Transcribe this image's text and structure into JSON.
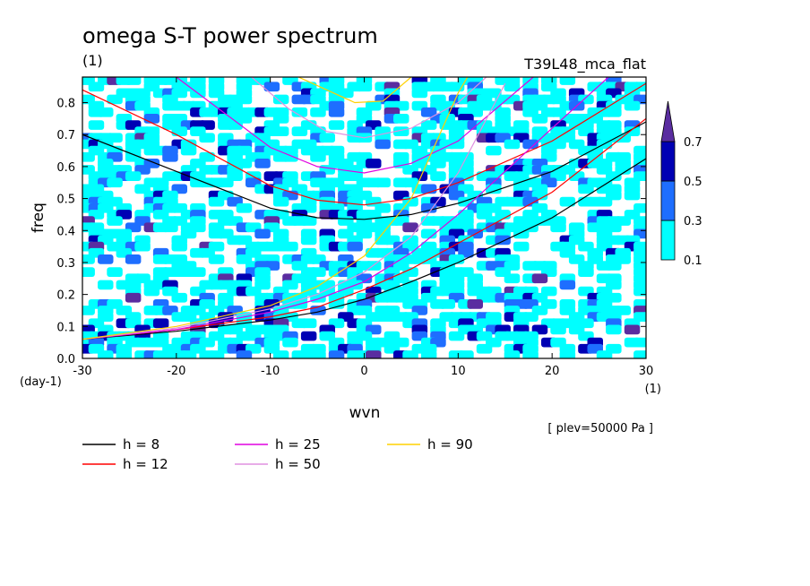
{
  "chart_data": {
    "type": "heatmap",
    "title": "omega S-T power spectrum",
    "subtitle_left": "(1)",
    "subtitle_right": "T39L48_mca_flat",
    "xlabel": "wvn",
    "ylabel": "freq",
    "x_unit": "(1)",
    "y_unit": "(day-1)",
    "level_note": "[ plev=50000 Pa ]",
    "xlim": [
      -30,
      30
    ],
    "ylim": [
      0,
      0.88
    ],
    "x_ticks": [
      "-30",
      "-20",
      "-10",
      "0",
      "10",
      "20",
      "30"
    ],
    "x_tick_values": [
      -30,
      -20,
      -10,
      0,
      10,
      20,
      30
    ],
    "y_ticks": [
      "0.0",
      "0.1",
      "0.2",
      "0.3",
      "0.4",
      "0.5",
      "0.6",
      "0.7",
      "0.8"
    ],
    "y_tick_values": [
      0,
      0.1,
      0.2,
      0.3,
      0.4,
      0.5,
      0.6,
      0.7,
      0.8
    ],
    "colorbar": {
      "levels": [
        "0.1",
        "0.3",
        "0.5",
        "0.7"
      ],
      "level_values": [
        0.1,
        0.3,
        0.5,
        0.7
      ],
      "colors": [
        "#00ffff",
        "#1e6eff",
        "#0000b4",
        "#5a2da0"
      ]
    },
    "field_description": "noisy patchy contours, mostly 0.1-0.3 with scattered 0.3-0.7",
    "dispersion_curves": [
      {
        "name": "h =  8",
        "color": "#000000",
        "points": [
          [
            -30,
            0.7
          ],
          [
            -20,
            0.585
          ],
          [
            -10,
            0.47
          ],
          [
            -5,
            0.44
          ],
          [
            0,
            0.435
          ],
          [
            5,
            0.45
          ],
          [
            10,
            0.485
          ],
          [
            20,
            0.585
          ],
          [
            30,
            0.74
          ]
        ]
      },
      {
        "name": "h =  8",
        "color": "#000000",
        "points": [
          [
            -30,
            0.06
          ],
          [
            -20,
            0.085
          ],
          [
            -10,
            0.12
          ],
          [
            -5,
            0.145
          ],
          [
            0,
            0.185
          ],
          [
            5,
            0.24
          ],
          [
            10,
            0.3
          ],
          [
            20,
            0.44
          ],
          [
            30,
            0.625
          ]
        ]
      },
      {
        "name": "h = 12",
        "color": "#ff0000",
        "points": [
          [
            -30,
            0.84
          ],
          [
            -20,
            0.7
          ],
          [
            -10,
            0.54
          ],
          [
            -5,
            0.495
          ],
          [
            0,
            0.48
          ],
          [
            5,
            0.5
          ],
          [
            10,
            0.55
          ],
          [
            20,
            0.68
          ],
          [
            30,
            0.86
          ]
        ]
      },
      {
        "name": "h = 12",
        "color": "#ff0000",
        "points": [
          [
            -30,
            0.06
          ],
          [
            -20,
            0.09
          ],
          [
            -10,
            0.13
          ],
          [
            -5,
            0.16
          ],
          [
            0,
            0.215
          ],
          [
            5,
            0.28
          ],
          [
            10,
            0.36
          ],
          [
            20,
            0.52
          ],
          [
            30,
            0.75
          ]
        ]
      },
      {
        "name": "h = 25",
        "color": "#e000e0",
        "points": [
          [
            -20,
            0.88
          ],
          [
            -10,
            0.66
          ],
          [
            -5,
            0.6
          ],
          [
            0,
            0.58
          ],
          [
            5,
            0.61
          ],
          [
            10,
            0.68
          ],
          [
            18,
            0.88
          ]
        ]
      },
      {
        "name": "h = 25",
        "color": "#e000e0",
        "points": [
          [
            -30,
            0.06
          ],
          [
            -20,
            0.09
          ],
          [
            -10,
            0.145
          ],
          [
            -5,
            0.185
          ],
          [
            0,
            0.24
          ],
          [
            5,
            0.33
          ],
          [
            10,
            0.45
          ],
          [
            20,
            0.72
          ],
          [
            26,
            0.88
          ]
        ]
      },
      {
        "name": "h = 50",
        "color": "#e090e0",
        "points": [
          [
            -12,
            0.88
          ],
          [
            -8,
            0.78
          ],
          [
            -4,
            0.71
          ],
          [
            0,
            0.69
          ],
          [
            5,
            0.72
          ],
          [
            10,
            0.8
          ],
          [
            13,
            0.88
          ]
        ]
      },
      {
        "name": "h = 50",
        "color": "#e090e0",
        "points": [
          [
            -30,
            0.06
          ],
          [
            -20,
            0.095
          ],
          [
            -10,
            0.155
          ],
          [
            -5,
            0.2
          ],
          [
            0,
            0.27
          ],
          [
            5,
            0.38
          ],
          [
            10,
            0.58
          ],
          [
            15,
            0.86
          ]
        ]
      },
      {
        "name": "h = 90",
        "color": "#ffd000",
        "points": [
          [
            -7,
            0.88
          ],
          [
            -4,
            0.84
          ],
          [
            -1,
            0.8
          ],
          [
            2,
            0.805
          ],
          [
            5,
            0.88
          ]
        ]
      },
      {
        "name": "h = 90",
        "color": "#ffd000",
        "points": [
          [
            -30,
            0.06
          ],
          [
            -20,
            0.1
          ],
          [
            -10,
            0.165
          ],
          [
            -5,
            0.225
          ],
          [
            0,
            0.32
          ],
          [
            5,
            0.5
          ],
          [
            10,
            0.83
          ],
          [
            11,
            0.88
          ]
        ]
      }
    ]
  },
  "legend": [
    {
      "label": "h =  8",
      "color": "#000000"
    },
    {
      "label": "h = 12",
      "color": "#ff0000"
    },
    {
      "label": "h = 25",
      "color": "#e000e0"
    },
    {
      "label": "h = 50",
      "color": "#e090e0"
    },
    {
      "label": "h = 90",
      "color": "#ffd000"
    }
  ]
}
